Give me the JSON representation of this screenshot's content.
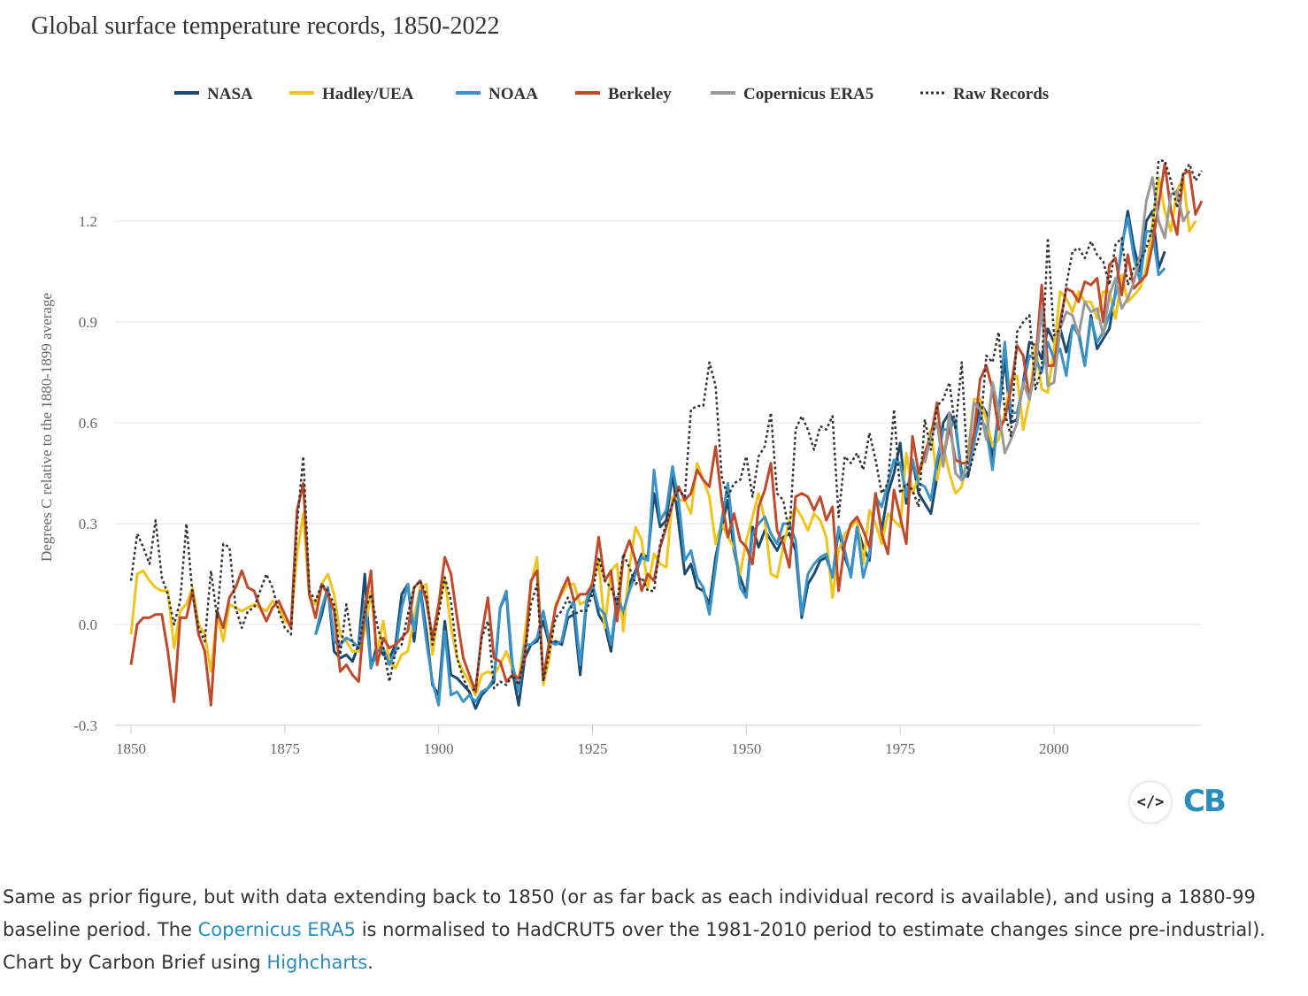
{
  "header": {
    "title": "Global surface temperature records, 1850-2022"
  },
  "caption": {
    "part1": "Same as prior figure, but with data extending back to 1850 (or as far back as each individual record is available), and using a 1880-99 baseline period. The ",
    "link1": "Copernicus ERA5",
    "part2": " is normalised to HadCRUT5 over the 1981-2010 period to estimate changes since pre-industrial). Chart by Carbon Brief using ",
    "link2": "Highcharts",
    "part3": "."
  },
  "embed_button": {
    "icon": "code-embed-icon",
    "label": "</>"
  },
  "logo": {
    "text": "CB"
  },
  "chart_data": {
    "type": "line",
    "title": "Global surface temperature records, 1850-2022",
    "ylabel": "Degrees C relative to the 1880-1899 average",
    "xlabel": "",
    "xlim": [
      1850,
      2023
    ],
    "ylim": [
      -0.3,
      1.4
    ],
    "x_ticks": [
      1850,
      1875,
      1900,
      1925,
      1950,
      1975,
      2000
    ],
    "y_ticks": [
      -0.3,
      0.0,
      0.3,
      0.6,
      0.9,
      1.2
    ],
    "grid": true,
    "legend_position": "top",
    "series": [
      {
        "name": "NASA",
        "color": "#1a4a6e",
        "dash": "solid",
        "start": 1880,
        "values": [
          -0.03,
          0.03,
          0.11,
          -0.08,
          -0.1,
          -0.09,
          -0.11,
          -0.06,
          0.15,
          -0.13,
          -0.06,
          -0.09,
          -0.1,
          -0.06,
          0.09,
          0.12,
          -0.05,
          0.11,
          -0.02,
          -0.18,
          -0.21,
          0.01,
          -0.15,
          -0.16,
          -0.18,
          -0.2,
          -0.25,
          -0.21,
          -0.19,
          -0.17,
          0.05,
          0.09,
          -0.14,
          -0.24,
          -0.1,
          -0.06,
          -0.05,
          0.01,
          -0.06,
          -0.05,
          -0.06,
          0.02,
          0.03,
          -0.15,
          0.06,
          0.11,
          0.03,
          0.0,
          -0.08,
          0.08,
          0.02,
          0.12,
          0.16,
          0.21,
          0.2,
          0.39,
          0.29,
          0.31,
          0.45,
          0.3,
          0.15,
          0.18,
          0.11,
          0.1,
          0.06,
          0.2,
          0.29,
          0.37,
          0.22,
          0.14,
          0.09,
          0.29,
          0.23,
          0.28,
          0.25,
          0.22,
          0.26,
          0.27,
          0.22,
          0.02,
          0.12,
          0.15,
          0.19,
          0.2,
          0.14,
          0.28,
          0.2,
          0.15,
          0.29,
          0.23,
          0.19,
          0.39,
          0.28,
          0.39,
          0.45,
          0.54,
          0.36,
          0.49,
          0.39,
          0.36,
          0.33,
          0.44,
          0.6,
          0.63,
          0.59,
          0.45,
          0.44,
          0.54,
          0.66,
          0.63,
          0.49,
          0.63,
          0.79,
          0.6,
          0.61,
          0.72,
          0.84,
          0.83,
          0.79,
          0.88,
          0.84,
          0.88,
          0.81,
          0.89,
          0.87,
          0.77,
          0.92,
          0.82,
          0.85,
          0.88,
          0.99,
          1.12,
          1.23,
          1.12,
          1.05,
          1.2,
          1.23,
          1.06,
          1.11
        ]
      },
      {
        "name": "Hadley/UEA",
        "color": "#f0c419",
        "dash": "solid",
        "start": 1850,
        "values": [
          -0.03,
          0.15,
          0.16,
          0.13,
          0.11,
          0.1,
          0.1,
          -0.07,
          0.04,
          0.06,
          0.11,
          0.0,
          -0.03,
          -0.14,
          0.03,
          -0.05,
          0.06,
          0.05,
          0.04,
          0.05,
          0.06,
          0.05,
          0.04,
          0.07,
          0.05,
          0.01,
          0.0,
          0.21,
          0.33,
          0.08,
          0.06,
          0.12,
          0.15,
          0.09,
          -0.03,
          -0.05,
          -0.08,
          -0.08,
          -0.02,
          0.1,
          -0.08,
          0.01,
          -0.11,
          -0.13,
          -0.09,
          -0.08,
          0.02,
          0.11,
          0.12,
          -0.09,
          0.05,
          0.14,
          -0.01,
          -0.1,
          -0.14,
          -0.17,
          -0.21,
          -0.15,
          -0.14,
          -0.15,
          -0.12,
          -0.08,
          -0.13,
          -0.17,
          -0.03,
          0.12,
          0.2,
          -0.18,
          -0.1,
          0.06,
          0.09,
          0.12,
          0.12,
          0.06,
          0.07,
          0.13,
          0.19,
          -0.01,
          0.16,
          0.18,
          -0.02,
          0.17,
          0.29,
          0.25,
          0.11,
          0.21,
          0.18,
          0.17,
          0.38,
          0.37,
          0.37,
          0.33,
          0.48,
          0.43,
          0.38,
          0.24,
          0.3,
          0.26,
          0.23,
          0.15,
          0.25,
          0.32,
          0.39,
          0.31,
          0.15,
          0.14,
          0.23,
          0.31,
          0.35,
          0.32,
          0.28,
          0.33,
          0.31,
          0.26,
          0.08,
          0.22,
          0.27,
          0.29,
          0.31,
          0.18,
          0.34,
          0.3,
          0.24,
          0.33,
          0.31,
          0.29,
          0.51,
          0.39,
          0.44,
          0.5,
          0.58,
          0.43,
          0.53,
          0.45,
          0.39,
          0.41,
          0.51,
          0.67,
          0.67,
          0.61,
          0.53,
          0.55,
          0.63,
          0.73,
          0.74,
          0.58,
          0.67,
          0.83,
          0.7,
          0.69,
          0.82,
          0.99,
          0.97,
          0.93,
          0.99,
          0.96,
          0.96,
          0.91,
          0.99,
          0.99,
          0.91,
          1.04,
          0.96,
          0.98,
          1.0,
          1.06,
          1.19,
          1.33,
          1.23,
          1.17,
          1.29,
          1.33,
          1.17,
          1.2
        ]
      },
      {
        "name": "NOAA",
        "color": "#3a93c8",
        "dash": "solid",
        "start": 1880,
        "values": [
          -0.03,
          0.05,
          0.11,
          -0.05,
          -0.06,
          -0.04,
          -0.05,
          -0.07,
          0.07,
          -0.13,
          -0.08,
          -0.07,
          -0.12,
          -0.08,
          0.05,
          0.12,
          -0.02,
          0.1,
          -0.05,
          -0.17,
          -0.24,
          -0.02,
          -0.21,
          -0.2,
          -0.23,
          -0.21,
          -0.23,
          -0.2,
          -0.19,
          -0.16,
          0.05,
          0.1,
          -0.12,
          -0.2,
          -0.06,
          -0.06,
          -0.04,
          0.04,
          -0.05,
          -0.06,
          -0.05,
          0.04,
          0.07,
          -0.12,
          0.07,
          0.12,
          0.05,
          0.03,
          -0.06,
          0.08,
          0.04,
          0.1,
          0.15,
          0.2,
          0.19,
          0.46,
          0.31,
          0.34,
          0.47,
          0.37,
          0.19,
          0.22,
          0.14,
          0.11,
          0.03,
          0.17,
          0.31,
          0.42,
          0.25,
          0.11,
          0.08,
          0.27,
          0.3,
          0.32,
          0.27,
          0.24,
          0.3,
          0.3,
          0.25,
          0.03,
          0.15,
          0.18,
          0.2,
          0.21,
          0.14,
          0.29,
          0.22,
          0.14,
          0.29,
          0.14,
          0.21,
          0.38,
          0.35,
          0.42,
          0.49,
          0.48,
          0.38,
          0.49,
          0.42,
          0.41,
          0.37,
          0.49,
          0.58,
          0.58,
          0.61,
          0.43,
          0.45,
          0.54,
          0.62,
          0.58,
          0.46,
          0.63,
          0.84,
          0.63,
          0.63,
          0.71,
          0.8,
          0.79,
          0.75,
          0.84,
          0.79,
          0.82,
          0.74,
          0.89,
          0.86,
          0.77,
          0.91,
          0.84,
          0.87,
          0.92,
          0.98,
          1.13,
          1.21,
          1.09,
          1.02,
          1.17,
          1.17,
          1.04,
          1.06
        ]
      },
      {
        "name": "Berkeley",
        "color": "#c24a2c",
        "dash": "solid",
        "start": 1850,
        "values": [
          -0.12,
          0.0,
          0.02,
          0.02,
          0.03,
          0.03,
          -0.08,
          -0.23,
          0.02,
          0.02,
          0.1,
          -0.03,
          -0.08,
          -0.24,
          0.04,
          -0.01,
          0.08,
          0.11,
          0.16,
          0.11,
          0.1,
          0.05,
          0.01,
          0.05,
          0.07,
          0.03,
          -0.01,
          0.34,
          0.42,
          0.09,
          0.02,
          0.12,
          0.09,
          0.04,
          -0.14,
          -0.12,
          -0.15,
          -0.17,
          0.04,
          0.16,
          -0.12,
          -0.04,
          -0.07,
          -0.06,
          -0.04,
          -0.02,
          0.11,
          0.13,
          0.07,
          -0.04,
          0.06,
          0.2,
          0.15,
          0.02,
          -0.1,
          -0.15,
          -0.2,
          -0.03,
          0.08,
          -0.1,
          -0.11,
          -0.17,
          -0.15,
          -0.16,
          -0.1,
          0.13,
          0.16,
          -0.16,
          -0.05,
          0.05,
          0.1,
          0.14,
          0.07,
          0.09,
          0.09,
          0.12,
          0.26,
          0.13,
          0.16,
          0.01,
          0.2,
          0.25,
          0.19,
          0.1,
          0.15,
          0.13,
          0.23,
          0.29,
          0.36,
          0.41,
          0.37,
          0.39,
          0.46,
          0.43,
          0.41,
          0.53,
          0.37,
          0.26,
          0.33,
          0.25,
          0.23,
          0.18,
          0.35,
          0.4,
          0.48,
          0.28,
          0.24,
          0.17,
          0.38,
          0.39,
          0.38,
          0.34,
          0.38,
          0.31,
          0.35,
          0.1,
          0.24,
          0.3,
          0.32,
          0.28,
          0.23,
          0.39,
          0.27,
          0.21,
          0.4,
          0.32,
          0.24,
          0.56,
          0.45,
          0.51,
          0.56,
          0.66,
          0.49,
          0.59,
          0.49,
          0.48,
          0.48,
          0.57,
          0.73,
          0.77,
          0.7,
          0.58,
          0.61,
          0.7,
          0.83,
          0.8,
          0.67,
          0.78,
          1.01,
          0.77,
          0.77,
          0.9,
          1.0,
          0.99,
          0.96,
          1.02,
          1.01,
          1.03,
          0.9,
          1.07,
          1.09,
          0.98,
          1.1,
          1.0,
          1.02,
          1.04,
          1.13,
          1.25,
          1.37,
          1.23,
          1.16,
          1.34,
          1.35,
          1.22,
          1.26
        ]
      },
      {
        "name": "Copernicus ERA5",
        "color": "#999999",
        "dash": "solid",
        "start": 1979,
        "values": [
          0.48,
          0.56,
          0.6,
          0.47,
          0.63,
          0.45,
          0.43,
          0.49,
          0.66,
          0.64,
          0.55,
          0.72,
          0.64,
          0.51,
          0.55,
          0.6,
          0.72,
          0.67,
          0.76,
          0.94,
          0.71,
          0.72,
          0.88,
          0.93,
          0.92,
          0.86,
          0.96,
          0.93,
          0.94,
          0.86,
          0.98,
          1.03,
          0.94,
          0.97,
          1.02,
          1.1,
          1.26,
          1.33,
          1.2,
          1.15,
          1.28,
          1.29,
          1.2,
          1.23
        ]
      },
      {
        "name": "Raw Records",
        "color": "#333333",
        "dash": "dotted",
        "start": 1850,
        "values": [
          0.13,
          0.27,
          0.23,
          0.18,
          0.31,
          0.14,
          0.09,
          0.0,
          0.07,
          0.3,
          0.09,
          -0.01,
          -0.05,
          0.16,
          0.02,
          0.24,
          0.23,
          0.05,
          -0.01,
          0.04,
          0.05,
          0.1,
          0.15,
          0.11,
          0.04,
          -0.01,
          -0.03,
          0.3,
          0.5,
          0.1,
          0.07,
          0.12,
          0.1,
          0.06,
          -0.09,
          0.06,
          -0.06,
          -0.07,
          0.04,
          0.09,
          0.0,
          -0.07,
          -0.17,
          -0.08,
          -0.06,
          0.03,
          0.11,
          0.13,
          0.09,
          -0.06,
          0.03,
          0.14,
          0.07,
          -0.1,
          -0.16,
          -0.2,
          -0.19,
          -0.04,
          0.01,
          -0.19,
          -0.17,
          -0.18,
          -0.15,
          -0.18,
          -0.09,
          0.06,
          0.12,
          -0.17,
          -0.08,
          0.02,
          0.04,
          0.08,
          0.03,
          0.04,
          0.04,
          0.09,
          0.2,
          0.13,
          0.11,
          0.06,
          0.21,
          0.17,
          0.12,
          0.14,
          0.1,
          0.1,
          0.24,
          0.3,
          0.36,
          0.4,
          0.38,
          0.64,
          0.65,
          0.65,
          0.78,
          0.71,
          0.44,
          0.38,
          0.42,
          0.43,
          0.5,
          0.38,
          0.5,
          0.53,
          0.63,
          0.39,
          0.37,
          0.27,
          0.58,
          0.62,
          0.58,
          0.52,
          0.59,
          0.58,
          0.62,
          0.32,
          0.5,
          0.48,
          0.51,
          0.46,
          0.57,
          0.49,
          0.39,
          0.42,
          0.64,
          0.39,
          0.42,
          0.4,
          0.35,
          0.61,
          0.52,
          0.65,
          0.67,
          0.72,
          0.58,
          0.78,
          0.44,
          0.51,
          0.57,
          0.8,
          0.78,
          0.87,
          0.63,
          0.56,
          0.87,
          0.9,
          0.92,
          0.7,
          0.76,
          1.15,
          0.86,
          0.88,
          1.01,
          1.11,
          1.12,
          1.09,
          1.14,
          1.1,
          1.08,
          1.01,
          1.13,
          1.15,
          1.01,
          1.06,
          1.08,
          1.12,
          1.18,
          1.38,
          1.38,
          1.32,
          1.24,
          1.34,
          1.37,
          1.32,
          1.35
        ]
      }
    ]
  }
}
